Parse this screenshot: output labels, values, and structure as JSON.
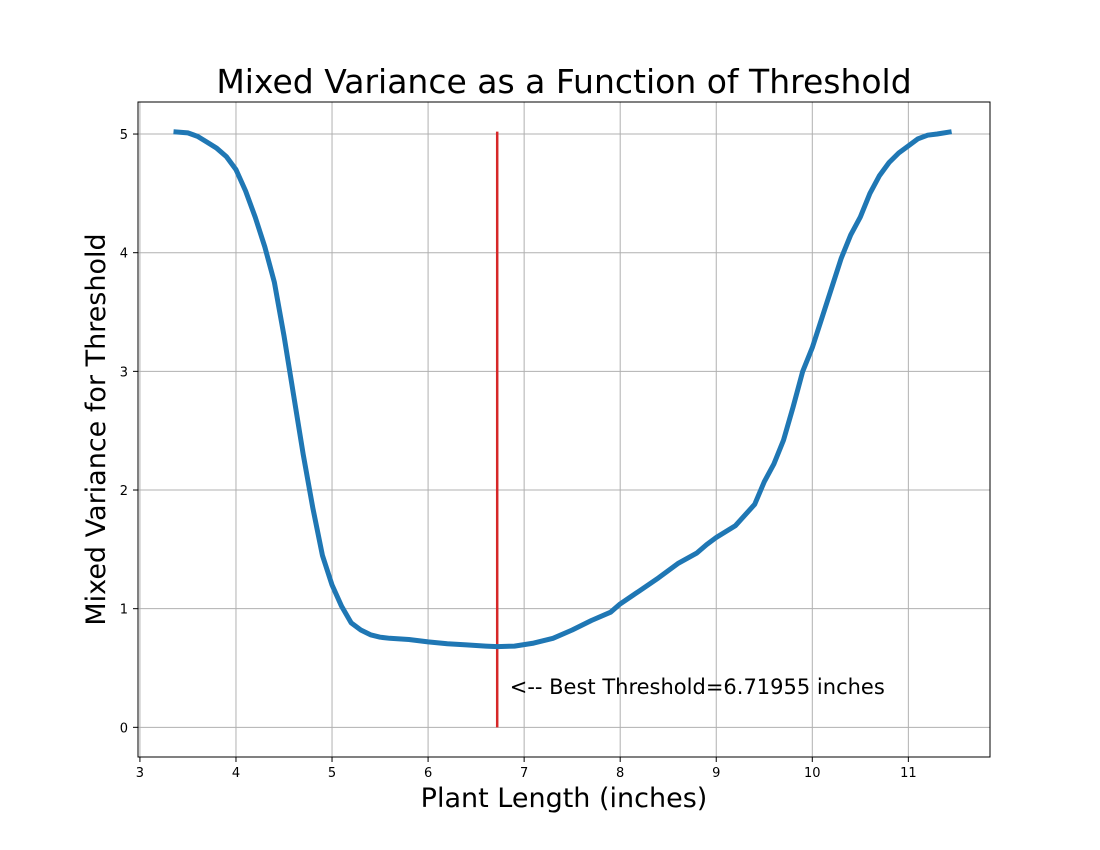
{
  "chart_data": {
    "type": "line",
    "title": "Mixed Variance as a Function of Threshold",
    "xlabel": "Plant Length (inches)",
    "ylabel": "Mixed Variance for Threshold",
    "xlim": [
      2.98,
      11.85
    ],
    "ylim": [
      -0.25,
      5.27
    ],
    "x_ticks": [
      3,
      4,
      5,
      6,
      7,
      8,
      9,
      10,
      11
    ],
    "y_ticks": [
      0,
      1,
      2,
      3,
      4,
      5
    ],
    "grid": true,
    "series": [
      {
        "color": "#1f77b4",
        "points": [
          [
            3.35,
            5.02
          ],
          [
            3.5,
            5.01
          ],
          [
            3.6,
            4.98
          ],
          [
            3.7,
            4.93
          ],
          [
            3.8,
            4.88
          ],
          [
            3.9,
            4.81
          ],
          [
            4.0,
            4.7
          ],
          [
            4.1,
            4.52
          ],
          [
            4.2,
            4.3
          ],
          [
            4.3,
            4.05
          ],
          [
            4.4,
            3.75
          ],
          [
            4.5,
            3.3
          ],
          [
            4.6,
            2.8
          ],
          [
            4.7,
            2.3
          ],
          [
            4.8,
            1.85
          ],
          [
            4.9,
            1.45
          ],
          [
            5.0,
            1.2
          ],
          [
            5.1,
            1.02
          ],
          [
            5.2,
            0.88
          ],
          [
            5.3,
            0.82
          ],
          [
            5.4,
            0.78
          ],
          [
            5.5,
            0.76
          ],
          [
            5.6,
            0.75
          ],
          [
            5.8,
            0.74
          ],
          [
            6.0,
            0.72
          ],
          [
            6.2,
            0.705
          ],
          [
            6.4,
            0.695
          ],
          [
            6.6,
            0.685
          ],
          [
            6.72,
            0.68
          ],
          [
            6.9,
            0.685
          ],
          [
            7.1,
            0.71
          ],
          [
            7.3,
            0.75
          ],
          [
            7.5,
            0.82
          ],
          [
            7.7,
            0.9
          ],
          [
            7.9,
            0.97
          ],
          [
            8.0,
            1.04
          ],
          [
            8.2,
            1.15
          ],
          [
            8.4,
            1.26
          ],
          [
            8.6,
            1.38
          ],
          [
            8.8,
            1.47
          ],
          [
            8.9,
            1.54
          ],
          [
            9.0,
            1.6
          ],
          [
            9.2,
            1.7
          ],
          [
            9.4,
            1.88
          ],
          [
            9.5,
            2.07
          ],
          [
            9.6,
            2.22
          ],
          [
            9.7,
            2.42
          ],
          [
            9.8,
            2.7
          ],
          [
            9.9,
            3.0
          ],
          [
            10.0,
            3.2
          ],
          [
            10.1,
            3.45
          ],
          [
            10.2,
            3.7
          ],
          [
            10.3,
            3.95
          ],
          [
            10.4,
            4.15
          ],
          [
            10.5,
            4.3
          ],
          [
            10.6,
            4.5
          ],
          [
            10.7,
            4.65
          ],
          [
            10.8,
            4.76
          ],
          [
            10.9,
            4.84
          ],
          [
            11.0,
            4.9
          ],
          [
            11.1,
            4.96
          ],
          [
            11.2,
            4.99
          ],
          [
            11.3,
            5.0
          ],
          [
            11.45,
            5.02
          ]
        ]
      }
    ],
    "threshold_line": {
      "x": 6.71955,
      "y_range": [
        0,
        5.02
      ],
      "color": "#d62728"
    },
    "annotation": {
      "text": "<-- Best Threshold=6.71955 inches",
      "x": 6.85,
      "y": 0.28
    }
  }
}
